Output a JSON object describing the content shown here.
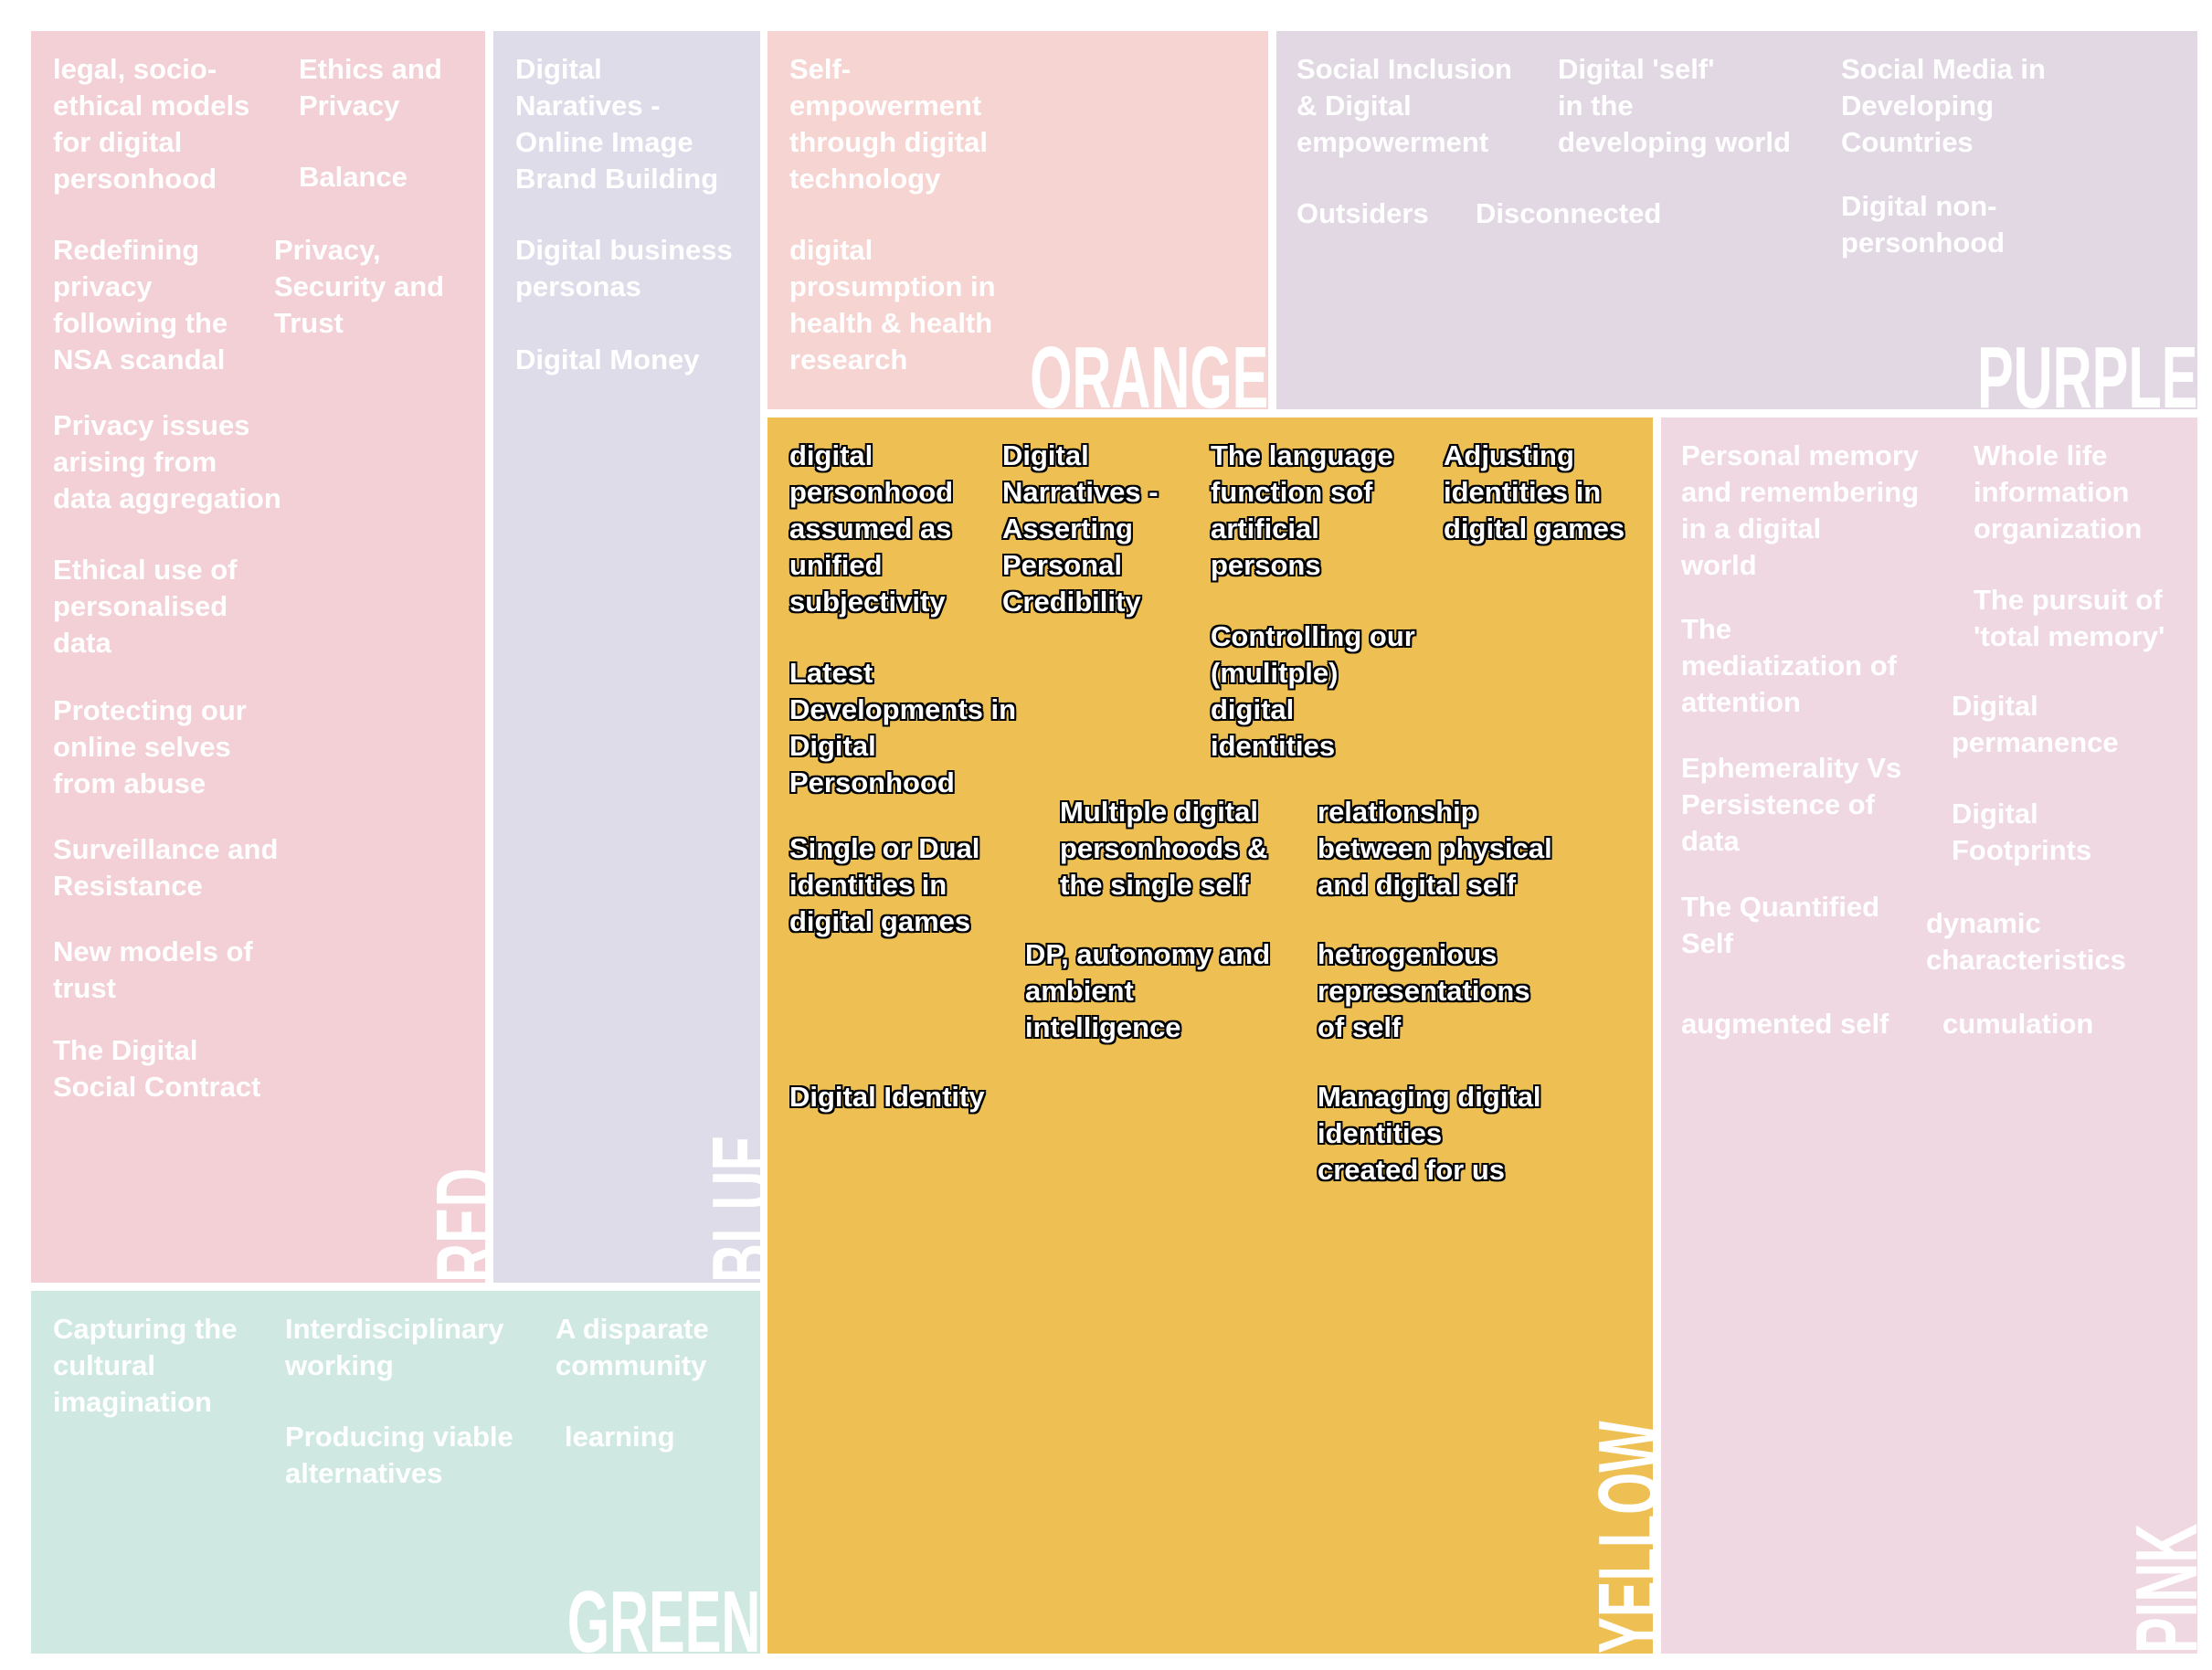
{
  "regions": {
    "red": {
      "label": "RED",
      "color": "#f2d0d6",
      "topics": [
        "legal, socio-\nethical models\nfor digital\npersonhood",
        "Ethics and\nPrivacy",
        "Balance",
        "Redefining\nprivacy\nfollowing the\nNSA scandal",
        "Privacy,\nSecurity and\nTrust",
        "Privacy issues\narising from\ndata aggregation",
        "Ethical use of\npersonalised\ndata",
        "Protecting our\nonline selves\nfrom abuse",
        "Surveillance and\nResistance",
        "New models of\ntrust",
        "The Digital\nSocial Contract"
      ]
    },
    "blue": {
      "label": "BLUE",
      "color": "#dfdcea",
      "topics": [
        "Digital\nNaratives -\nOnline Image\nBrand Building",
        "Digital business\npersonas",
        "Digital Money"
      ]
    },
    "orange": {
      "label": "ORANGE",
      "color": "#f6d4d2",
      "topics": [
        "Self-\nempowerment\nthrough digital\ntechnology",
        "digital\nprosumption in\nhealth & health\nresearch"
      ]
    },
    "purple": {
      "label": "PURPLE",
      "color": "#e2d8e4",
      "topics": [
        "Social Inclusion\n& Digital\nempowerment",
        "Digital 'self'\nin the\ndeveloping world",
        "Social Media in\nDeveloping\nCountries",
        "Outsiders",
        "Disconnected",
        "Digital non-\npersonhood"
      ]
    },
    "yellow": {
      "label": "YELLOW",
      "color": "#eebf52",
      "topics": [
        "digital\npersonhood\nassumed as\nunified\nsubjectivity",
        "Digital\nNarratives -\nAsserting\nPersonal\nCredibility",
        "The language\nfunction sof\nartificial\npersons",
        "Adjusting\nidentities in\ndigital games",
        "Controlling our\n(mulitple)\ndigital\nidentities",
        "Latest\nDevelopments in\nDigital\nPersonhood",
        "Multiple digital\npersonhoods &\nthe single self",
        "relationship\nbetween physical\nand digital self",
        "Single or Dual\nidentities in\ndigital games",
        "DP, autonomy and\nambient\nintelligence",
        "hetrogenious\nrepresentations\nof self",
        "Digital Identity",
        "Managing digital\nidentities\ncreated for us"
      ]
    },
    "pink": {
      "label": "PINK",
      "color": "#f0d8e2",
      "topics": [
        "Personal memory\nand remembering\nin a digital\nworld",
        "Whole life\ninformation\norganization",
        "The pursuit of\n'total memory'",
        "The\nmediatization of\nattention",
        "Digital\npermanence",
        "Ephemerality Vs\nPersistence of\ndata",
        "Digital\nFootprints",
        "The Quantified\nSelf",
        "dynamic\ncharacteristics",
        "augmented self",
        "cumulation"
      ]
    },
    "green": {
      "label": "GREEN",
      "color": "#cfe9e2",
      "topics": [
        "Capturing the\ncultural\nimagination",
        "Interdisciplinary\nworking",
        "A disparate\ncommunity",
        "Producing viable\nalternatives",
        "learning"
      ]
    }
  }
}
